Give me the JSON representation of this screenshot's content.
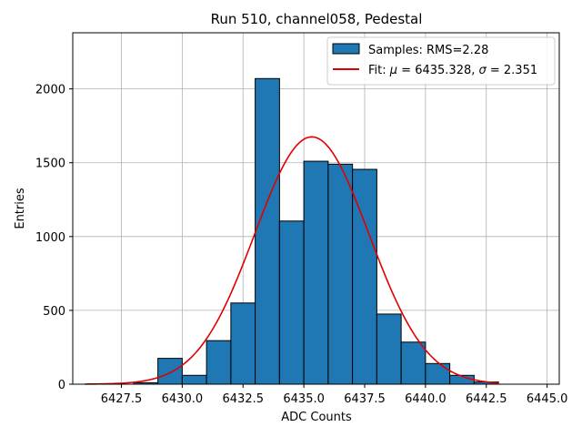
{
  "chart_data": {
    "type": "bar",
    "title": "Run 510, channel058, Pedestal",
    "xlabel": "ADC Counts",
    "ylabel": "Entries",
    "xlim": [
      6425.5,
      6445.5
    ],
    "ylim": [
      0,
      2380
    ],
    "grid": true,
    "legend_position": "top-right",
    "colors": {
      "bars": "#1f77b4",
      "fit": "#e00000",
      "grid": "#b0b0b0"
    },
    "x_ticks": [
      {
        "value": 6427.5,
        "label": "6427.5"
      },
      {
        "value": 6430.0,
        "label": "6430.0"
      },
      {
        "value": 6432.5,
        "label": "6432.5"
      },
      {
        "value": 6435.0,
        "label": "6435.0"
      },
      {
        "value": 6437.5,
        "label": "6437.5"
      },
      {
        "value": 6440.0,
        "label": "6440.0"
      },
      {
        "value": 6442.5,
        "label": "6442.5"
      },
      {
        "value": 6445.0,
        "label": "6445.0"
      }
    ],
    "y_ticks": [
      {
        "value": 0,
        "label": "0"
      },
      {
        "value": 500,
        "label": "500"
      },
      {
        "value": 1000,
        "label": "1000"
      },
      {
        "value": 1500,
        "label": "1500"
      },
      {
        "value": 2000,
        "label": "2000"
      }
    ],
    "histogram": {
      "name": "Samples: RMS=2.28",
      "bin_width": 1,
      "bins": [
        {
          "left": 6428,
          "value": 10
        },
        {
          "left": 6429,
          "value": 175
        },
        {
          "left": 6430,
          "value": 60
        },
        {
          "left": 6431,
          "value": 295
        },
        {
          "left": 6432,
          "value": 550
        },
        {
          "left": 6433,
          "value": 2070
        },
        {
          "left": 6434,
          "value": 1105
        },
        {
          "left": 6435,
          "value": 1510
        },
        {
          "left": 6436,
          "value": 1490
        },
        {
          "left": 6437,
          "value": 1455
        },
        {
          "left": 6438,
          "value": 475
        },
        {
          "left": 6439,
          "value": 285
        },
        {
          "left": 6440,
          "value": 140
        },
        {
          "left": 6441,
          "value": 60
        },
        {
          "left": 6442,
          "value": 15
        }
      ]
    },
    "fit": {
      "name": "Fit: μ = 6435.328, σ = 2.351",
      "legend_prefix": "Fit: ",
      "legend_mu_symbol": "μ",
      "legend_mu_value": " = 6435.328, ",
      "legend_sigma_symbol": "σ",
      "legend_sigma_value": " = 2.351",
      "mu": 6435.328,
      "sigma": 2.351,
      "amplitude": 1675,
      "x_range": [
        6426.0,
        6443.0
      ]
    }
  }
}
